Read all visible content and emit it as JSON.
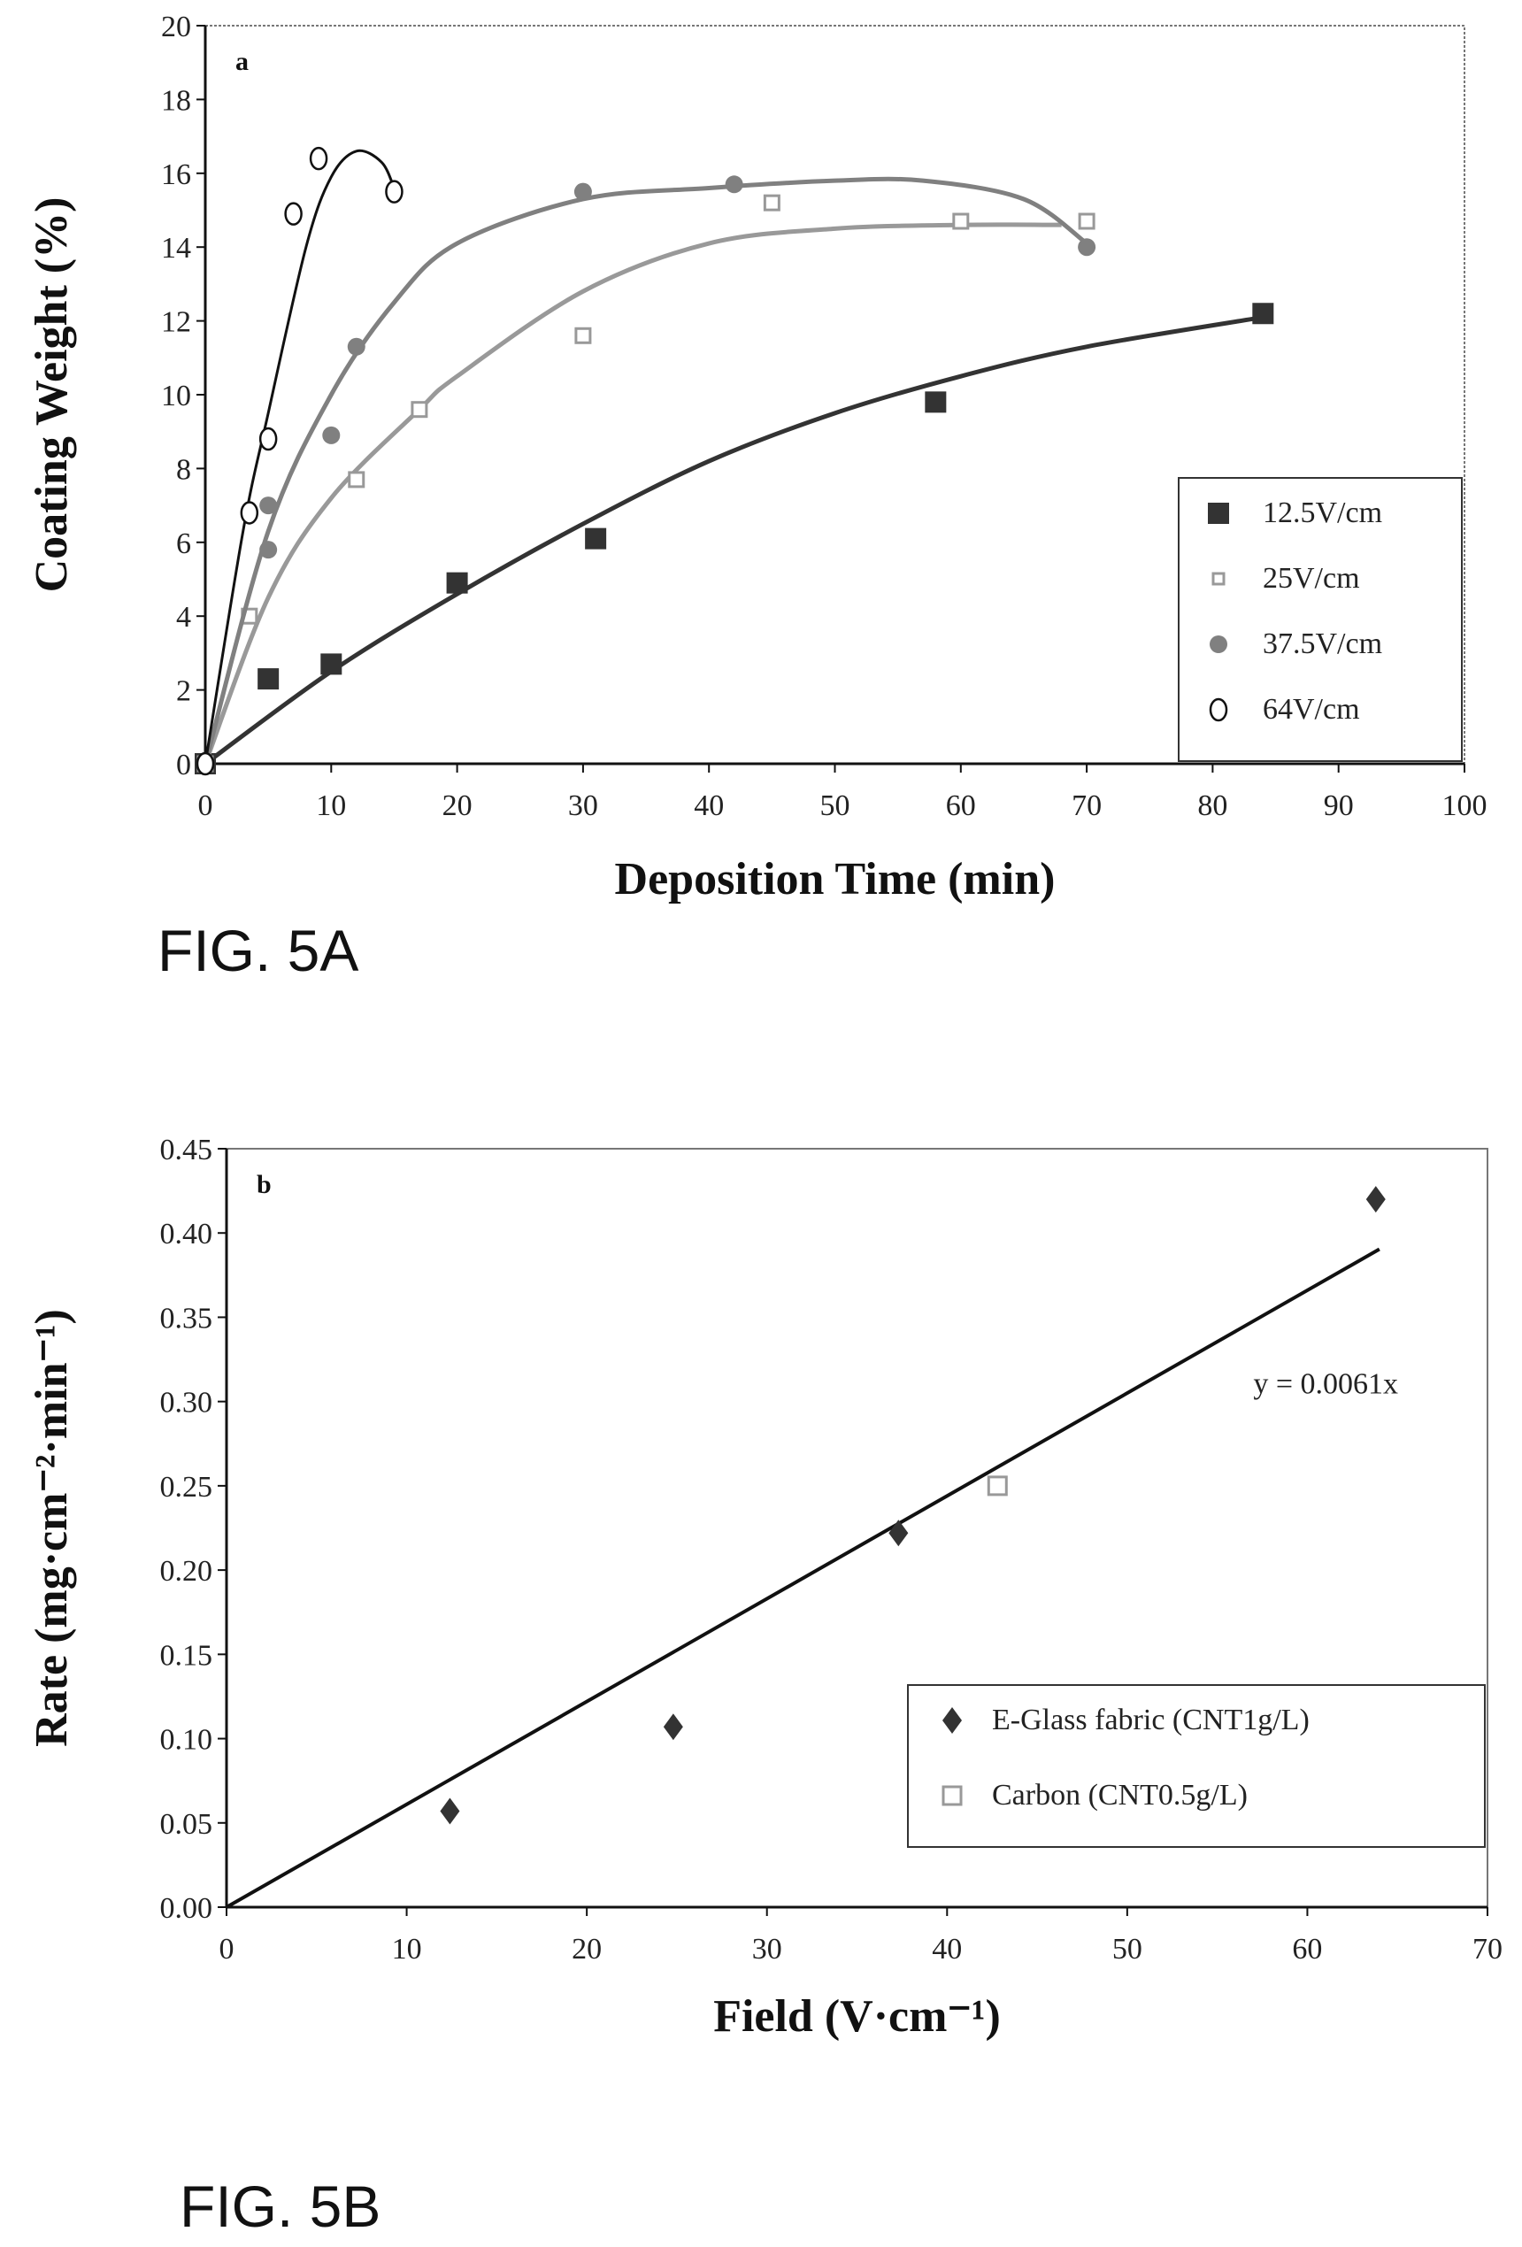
{
  "chart_data": [
    {
      "type": "scatter",
      "figure_label": "FIG. 5A",
      "panel_label": "a",
      "xlabel": "Deposition Time (min)",
      "ylabel": "Coating Weight (%)",
      "xlim": [
        0,
        100
      ],
      "ylim": [
        0,
        20
      ],
      "xticks": [
        "0",
        "10",
        "20",
        "30",
        "40",
        "50",
        "60",
        "70",
        "80",
        "90",
        "100"
      ],
      "yticks": [
        "0",
        "2",
        "4",
        "6",
        "8",
        "10",
        "12",
        "14",
        "16",
        "18",
        "20"
      ],
      "legend_position": "bottom-right",
      "series": [
        {
          "name": "12.5V/cm",
          "marker": "filled-square",
          "color": "#333333",
          "points": [
            [
              0,
              0
            ],
            [
              5,
              2.3
            ],
            [
              10,
              2.7
            ],
            [
              20,
              4.9
            ],
            [
              31,
              6.1
            ],
            [
              58,
              9.8
            ],
            [
              84,
              12.2
            ]
          ],
          "trend": [
            [
              0,
              0
            ],
            [
              10,
              2.5
            ],
            [
              20,
              4.6
            ],
            [
              30,
              6.5
            ],
            [
              40,
              8.2
            ],
            [
              50,
              9.5
            ],
            [
              60,
              10.5
            ],
            [
              70,
              11.3
            ],
            [
              84,
              12.1
            ]
          ]
        },
        {
          "name": "25V/cm",
          "marker": "open-square",
          "color": "#999999",
          "points": [
            [
              0,
              0
            ],
            [
              3.5,
              4
            ],
            [
              12,
              7.7
            ],
            [
              17,
              9.6
            ],
            [
              30,
              11.6
            ],
            [
              45,
              15.2
            ],
            [
              60,
              14.7
            ],
            [
              70,
              14.7
            ]
          ],
          "trend": [
            [
              0,
              0
            ],
            [
              5,
              4.5
            ],
            [
              10,
              7.2
            ],
            [
              17,
              9.6
            ],
            [
              20,
              10.5
            ],
            [
              30,
              12.8
            ],
            [
              40,
              14.1
            ],
            [
              50,
              14.5
            ],
            [
              60,
              14.6
            ],
            [
              68,
              14.6
            ]
          ]
        },
        {
          "name": "37.5V/cm",
          "marker": "filled-circle",
          "color": "#808080",
          "points": [
            [
              0,
              0
            ],
            [
              5,
              5.8
            ],
            [
              5,
              7
            ],
            [
              10,
              8.9
            ],
            [
              12,
              11.3
            ],
            [
              30,
              15.5
            ],
            [
              42,
              15.7
            ],
            [
              70,
              14
            ]
          ],
          "trend": [
            [
              0,
              0
            ],
            [
              5,
              6.3
            ],
            [
              10,
              10
            ],
            [
              15,
              12.5
            ],
            [
              20,
              14.1
            ],
            [
              30,
              15.3
            ],
            [
              40,
              15.6
            ],
            [
              50,
              15.8
            ],
            [
              57,
              15.8
            ],
            [
              65,
              15.3
            ],
            [
              70,
              14.1
            ]
          ]
        },
        {
          "name": "64V/cm",
          "marker": "open-circle",
          "color": "#111111",
          "points": [
            [
              0,
              0
            ],
            [
              3.5,
              6.8
            ],
            [
              5,
              8.8
            ],
            [
              7,
              14.9
            ],
            [
              9,
              16.4
            ],
            [
              15,
              15.5
            ]
          ],
          "trend": [
            [
              0,
              0
            ],
            [
              3,
              6.3
            ],
            [
              5,
              9.5
            ],
            [
              8,
              14
            ],
            [
              10,
              15.9
            ],
            [
              12,
              16.6
            ],
            [
              14,
              16.3
            ],
            [
              15,
              15.6
            ]
          ]
        }
      ]
    },
    {
      "type": "scatter",
      "figure_label": "FIG. 5B",
      "panel_label": "b",
      "xlabel": "Field (V·cm⁻¹)",
      "ylabel": "Rate (mg·cm⁻²·min⁻¹)",
      "xlim": [
        0,
        70
      ],
      "ylim": [
        0,
        0.45
      ],
      "xticks": [
        "0",
        "10",
        "20",
        "30",
        "40",
        "50",
        "60",
        "70"
      ],
      "yticks": [
        "0.00",
        "0.05",
        "0.10",
        "0.15",
        "0.20",
        "0.25",
        "0.30",
        "0.35",
        "0.40",
        "0.45"
      ],
      "legend_position": "bottom-right",
      "fit": {
        "label": "y = 0.0061x",
        "slope": 0.0061,
        "x_range": [
          0,
          64
        ]
      },
      "series": [
        {
          "name": "E-Glass fabric (CNT1g/L)",
          "marker": "diamond",
          "color": "#333333",
          "points": [
            [
              12.4,
              0.057
            ],
            [
              24.8,
              0.107
            ],
            [
              37.3,
              0.222
            ],
            [
              63.8,
              0.42
            ]
          ]
        },
        {
          "name": "Carbon (CNT0.5g/L)",
          "marker": "open-square",
          "color": "#999999",
          "points": [
            [
              42.8,
              0.25
            ]
          ]
        }
      ]
    }
  ]
}
